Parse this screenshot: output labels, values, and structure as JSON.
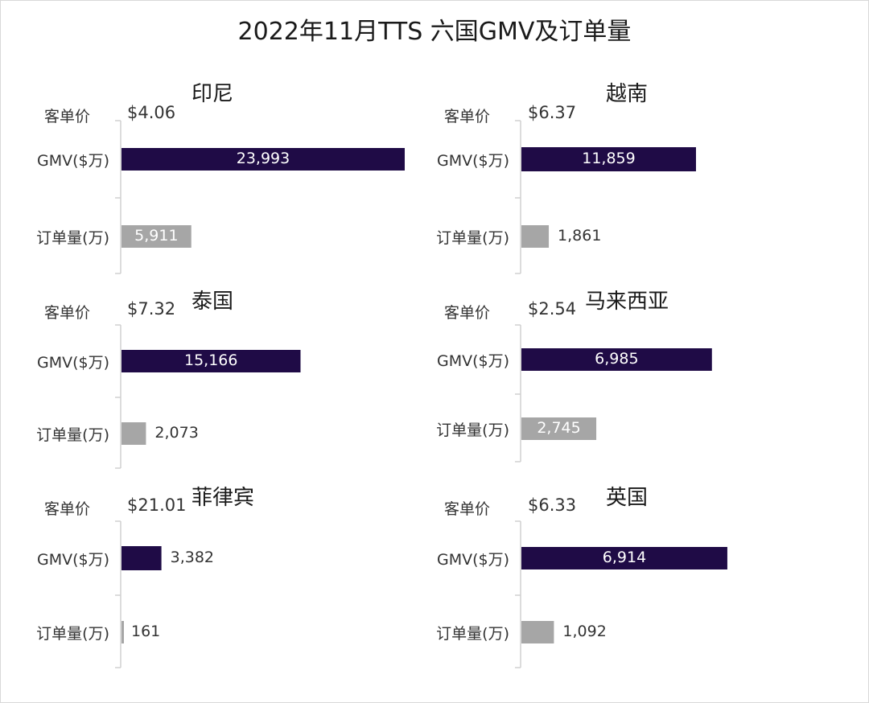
{
  "title": "2022年11月TTS 六国GMV及订单量",
  "colors": {
    "gmv": "#1f0b46",
    "orders": "#a6a6a6",
    "axis": "#d0d0d0"
  },
  "chart_data": [
    {
      "type": "bar",
      "title": "印尼",
      "unit_price_label": "客单价",
      "unit_price": "$4.06",
      "categories": [
        "GMV($万)",
        "订单量(万)"
      ],
      "values": [
        23993,
        5911
      ],
      "value_labels": [
        "23,993",
        "5,911"
      ],
      "xlim": [
        0,
        23993
      ]
    },
    {
      "type": "bar",
      "title": "越南",
      "unit_price_label": "客单价",
      "unit_price": "$6.37",
      "categories": [
        "GMV($万)",
        "订单量(万)"
      ],
      "values": [
        11859,
        1861
      ],
      "value_labels": [
        "11,859",
        "1,861"
      ],
      "xlim": [
        0,
        23993
      ]
    },
    {
      "type": "bar",
      "title": "泰国",
      "unit_price_label": "客单价",
      "unit_price": "$7.32",
      "categories": [
        "GMV($万)",
        "订单量(万)"
      ],
      "values": [
        15166,
        2073
      ],
      "value_labels": [
        "15,166",
        "2,073"
      ],
      "xlim": [
        0,
        23993
      ]
    },
    {
      "type": "bar",
      "title": "马来西亚",
      "unit_price_label": "客单价",
      "unit_price": "$2.54",
      "categories": [
        "GMV($万)",
        "订单量(万)"
      ],
      "values": [
        6985,
        2745
      ],
      "value_labels": [
        "6,985",
        "2,745"
      ],
      "xlim": [
        0,
        11859
      ]
    },
    {
      "type": "bar",
      "title": "菲律宾",
      "unit_price_label": "客单价",
      "unit_price": "$21.01",
      "categories": [
        "GMV($万)",
        "订单量(万)"
      ],
      "values": [
        3382,
        161
      ],
      "value_labels": [
        "3,382",
        "161"
      ],
      "xlim": [
        0,
        23993
      ]
    },
    {
      "type": "bar",
      "title": "英国",
      "unit_price_label": "客单价",
      "unit_price": "$6.33",
      "categories": [
        "GMV($万)",
        "订单量(万)"
      ],
      "values": [
        6914,
        1092
      ],
      "value_labels": [
        "6,914",
        "1,092"
      ],
      "xlim": [
        0,
        11859
      ]
    }
  ]
}
